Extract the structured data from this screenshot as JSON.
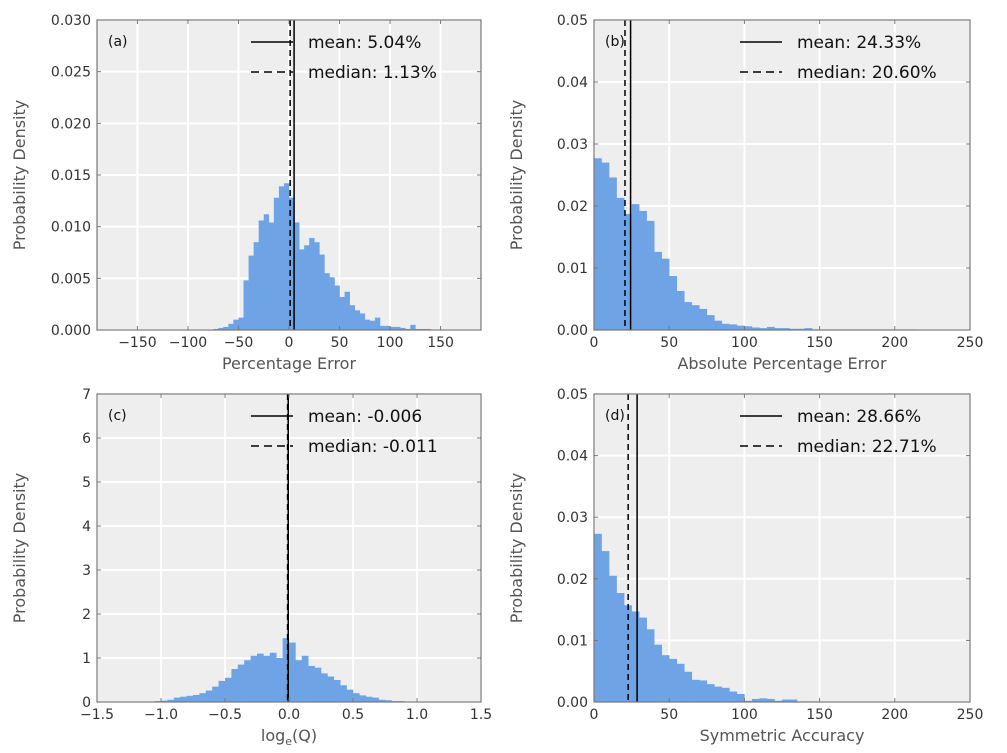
{
  "chart_data": [
    {
      "type": "bar",
      "panel_label": "(a)",
      "xlabel": "Percentage Error",
      "ylabel": "Probability Density",
      "xlim": [
        -190,
        190
      ],
      "ylim": [
        0,
        0.03
      ],
      "xticks": [
        -150,
        -100,
        -50,
        0,
        50,
        100,
        150
      ],
      "xtick_labels": [
        "−150",
        "−100",
        "−50",
        "0",
        "50",
        "100",
        "150"
      ],
      "yticks": [
        0,
        0.005,
        0.01,
        0.015,
        0.02,
        0.025,
        0.03
      ],
      "ytick_labels": [
        "0.000",
        "0.005",
        "0.010",
        "0.015",
        "0.020",
        "0.025",
        "0.030"
      ],
      "grid": true,
      "legend_position": "top-right",
      "bar_color": "#6ea3e6",
      "bin_width": 5,
      "bin_starts": [
        -75,
        -70,
        -65,
        -60,
        -55,
        -50,
        -45,
        -40,
        -35,
        -30,
        -25,
        -20,
        -15,
        -10,
        -5,
        0,
        5,
        10,
        15,
        20,
        25,
        30,
        35,
        40,
        45,
        50,
        55,
        60,
        65,
        70,
        75,
        80,
        85,
        90,
        95,
        100,
        105,
        110,
        115,
        120,
        125,
        130,
        135
      ],
      "values": [
        0.0001,
        0.0002,
        0.0003,
        0.0006,
        0.001,
        0.0012,
        0.0048,
        0.0072,
        0.0085,
        0.0106,
        0.0112,
        0.0104,
        0.0128,
        0.0139,
        0.0142,
        0.0128,
        0.0104,
        0.0078,
        0.0082,
        0.0089,
        0.0085,
        0.0073,
        0.0055,
        0.0051,
        0.0043,
        0.0032,
        0.0037,
        0.0024,
        0.0019,
        0.0016,
        0.001,
        0.0009,
        0.0012,
        0.0004,
        0.0004,
        0.0003,
        0.0003,
        0.0002,
        0.0001,
        0.0005,
        0.0001,
        0.0001,
        0.0001
      ],
      "mean": 5.04,
      "median": 1.13,
      "legend": [
        {
          "style": "solid",
          "label": "mean: 5.04%"
        },
        {
          "style": "dashed",
          "label": "median: 1.13%"
        }
      ]
    },
    {
      "type": "bar",
      "panel_label": "(b)",
      "xlabel": "Absolute Percentage Error",
      "ylabel": "Probability Density",
      "xlim": [
        0,
        250
      ],
      "ylim": [
        0,
        0.05
      ],
      "xticks": [
        0,
        50,
        100,
        150,
        200,
        250
      ],
      "xtick_labels": [
        "0",
        "50",
        "100",
        "150",
        "200",
        "250"
      ],
      "yticks": [
        0,
        0.01,
        0.02,
        0.03,
        0.04,
        0.05
      ],
      "ytick_labels": [
        "0.00",
        "0.01",
        "0.02",
        "0.03",
        "0.04",
        "0.05"
      ],
      "grid": true,
      "legend_position": "top-right",
      "bar_color": "#6ea3e6",
      "bin_width": 5,
      "bin_starts": [
        0,
        5,
        10,
        15,
        20,
        25,
        30,
        35,
        40,
        45,
        50,
        55,
        60,
        65,
        70,
        75,
        80,
        85,
        90,
        95,
        100,
        105,
        110,
        115,
        120,
        125,
        130,
        135,
        140,
        145,
        150,
        155,
        160,
        165,
        170,
        175,
        180,
        185,
        190,
        195,
        200,
        205,
        210
      ],
      "values": [
        0.0277,
        0.027,
        0.0246,
        0.0213,
        0.0187,
        0.0203,
        0.0192,
        0.0176,
        0.0126,
        0.0115,
        0.0087,
        0.0063,
        0.0045,
        0.004,
        0.0034,
        0.0024,
        0.0015,
        0.001,
        0.0009,
        0.0007,
        0.0006,
        0.0004,
        0.0003,
        0.0005,
        0.0003,
        0.0003,
        0.0002,
        0.0002,
        0.0003,
        0.0001,
        0.0001,
        0.0001,
        0.0001,
        0.0001,
        0.0001,
        0.0001,
        0.0001,
        0.0001,
        0.0001,
        0.0001,
        0.0001,
        0.0001,
        0.0001
      ],
      "mean": 24.33,
      "median": 20.6,
      "legend": [
        {
          "style": "solid",
          "label": "mean: 24.33%"
        },
        {
          "style": "dashed",
          "label": "median: 20.60%"
        }
      ]
    },
    {
      "type": "bar",
      "panel_label": "(c)",
      "xlabel": "log_e(Q)",
      "xlabel_main": "log",
      "xlabel_sub": "e",
      "xlabel_rest": "(Q)",
      "ylabel": "Probability Density",
      "xlim": [
        -1.5,
        1.5
      ],
      "ylim": [
        0,
        7
      ],
      "xticks": [
        -1.5,
        -1.0,
        -0.5,
        0.0,
        0.5,
        1.0,
        1.5
      ],
      "xtick_labels": [
        "−1.5",
        "−1.0",
        "−0.5",
        "0.0",
        "0.5",
        "1.0",
        "1.5"
      ],
      "yticks": [
        0,
        1,
        2,
        3,
        4,
        5,
        6,
        7
      ],
      "ytick_labels": [
        "0",
        "1",
        "2",
        "3",
        "4",
        "5",
        "6",
        "7"
      ],
      "grid": true,
      "legend_position": "top-right",
      "bar_color": "#6ea3e6",
      "bin_width": 0.05,
      "bin_starts": [
        -1.1,
        -1.05,
        -1.0,
        -0.95,
        -0.9,
        -0.85,
        -0.8,
        -0.75,
        -0.7,
        -0.65,
        -0.6,
        -0.55,
        -0.5,
        -0.45,
        -0.4,
        -0.35,
        -0.3,
        -0.25,
        -0.2,
        -0.15,
        -0.1,
        -0.05,
        0.0,
        0.05,
        0.1,
        0.15,
        0.2,
        0.25,
        0.3,
        0.35,
        0.4,
        0.45,
        0.5,
        0.55,
        0.6,
        0.65,
        0.7,
        0.75,
        0.8,
        0.85,
        0.9,
        0.95
      ],
      "values": [
        0.01,
        0.02,
        0.03,
        0.05,
        0.1,
        0.12,
        0.14,
        0.16,
        0.2,
        0.26,
        0.35,
        0.48,
        0.55,
        0.75,
        0.85,
        0.95,
        1.05,
        1.1,
        1.05,
        1.12,
        1.0,
        1.45,
        1.35,
        0.95,
        1.05,
        0.82,
        0.78,
        0.65,
        0.58,
        0.5,
        0.38,
        0.28,
        0.2,
        0.15,
        0.12,
        0.1,
        0.05,
        0.04,
        0.02,
        0.02,
        0.01,
        0.01
      ],
      "mean": -0.006,
      "median": -0.011,
      "legend": [
        {
          "style": "solid",
          "label": "mean: -0.006"
        },
        {
          "style": "dashed",
          "label": "median: -0.011"
        }
      ]
    },
    {
      "type": "bar",
      "panel_label": "(d)",
      "xlabel": "Symmetric Accuracy",
      "ylabel": "Probability Density",
      "xlim": [
        0,
        250
      ],
      "ylim": [
        0,
        0.05
      ],
      "xticks": [
        0,
        50,
        100,
        150,
        200,
        250
      ],
      "xtick_labels": [
        "0",
        "50",
        "100",
        "150",
        "200",
        "250"
      ],
      "yticks": [
        0,
        0.01,
        0.02,
        0.03,
        0.04,
        0.05
      ],
      "ytick_labels": [
        "0.00",
        "0.01",
        "0.02",
        "0.03",
        "0.04",
        "0.05"
      ],
      "grid": true,
      "legend_position": "top-right",
      "bar_color": "#6ea3e6",
      "bin_width": 5,
      "bin_starts": [
        0,
        5,
        10,
        15,
        20,
        25,
        30,
        35,
        40,
        45,
        50,
        55,
        60,
        65,
        70,
        75,
        80,
        85,
        90,
        95,
        100,
        105,
        110,
        115,
        120,
        125,
        130,
        135,
        140,
        145
      ],
      "values": [
        0.0273,
        0.0245,
        0.0205,
        0.0177,
        0.0157,
        0.0147,
        0.0137,
        0.0118,
        0.0093,
        0.0076,
        0.007,
        0.0062,
        0.0049,
        0.0036,
        0.0035,
        0.0029,
        0.0025,
        0.0023,
        0.0017,
        0.0013,
        0.0002,
        0.0005,
        0.0006,
        0.0005,
        0.0002,
        0.0004,
        0.0004,
        0.0001,
        0.0001,
        0.0001
      ],
      "mean": 28.66,
      "median": 22.71,
      "legend": [
        {
          "style": "solid",
          "label": "mean: 28.66%"
        },
        {
          "style": "dashed",
          "label": "median: 22.71%"
        }
      ]
    }
  ]
}
